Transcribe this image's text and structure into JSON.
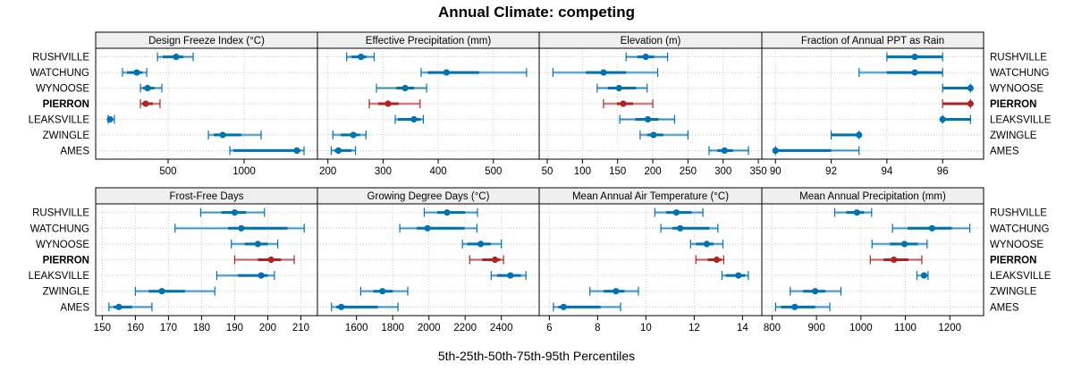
{
  "title": "Annual Climate: competing",
  "xlabel": "5th-25th-50th-75th-95th Percentiles",
  "colors": {
    "site": "#0072b2",
    "site_light": "#5aa3cf",
    "highlight": "#b22222",
    "highlight_light": "#d98080",
    "strip_bg": "#efefef",
    "grid": "#c8c8c8"
  },
  "chart_data": {
    "type": "dotplot-percentile",
    "title": "Annual Climate: competing",
    "xlabel": "5th-25th-50th-75th-95th Percentiles",
    "sites": [
      "RUSHVILLE",
      "WATCHUNG",
      "WYNOOSE",
      "PIERRON",
      "LEAKSVILLE",
      "ZWINGLE",
      "AMES"
    ],
    "highlight_site": "PIERRON",
    "percentiles": [
      "p5",
      "p25",
      "p50",
      "p75",
      "p95"
    ],
    "panels": [
      {
        "name": "Design Freeze Index (°C)",
        "xlim": [
          24,
          1482
        ],
        "ticks": [
          500,
          1000
        ],
        "values": {
          "RUSHVILLE": [
            430,
            465,
            553,
            600,
            665
          ],
          "WATCHUNG": [
            200,
            230,
            294,
            330,
            360
          ],
          "WYNOOSE": [
            318,
            335,
            365,
            410,
            459
          ],
          "PIERRON": [
            318,
            330,
            353,
            400,
            447
          ],
          "LEAKSVILLE": [
            106,
            110,
            118,
            130,
            147
          ],
          "ZWINGLE": [
            765,
            800,
            859,
            982,
            1112
          ],
          "AMES": [
            906,
            930,
            1347,
            1370,
            1394
          ]
        }
      },
      {
        "name": "Effective Precipitation (mm)",
        "xlim": [
          181,
          583
        ],
        "ticks": [
          200,
          300,
          400,
          500
        ],
        "values": {
          "RUSHVILLE": [
            234,
            243,
            260,
            270,
            284
          ],
          "WATCHUNG": [
            369,
            381,
            415,
            474,
            560
          ],
          "WYNOOSE": [
            288,
            324,
            340,
            356,
            379
          ],
          "PIERRON": [
            275,
            291,
            309,
            328,
            367
          ],
          "LEAKSVILLE": [
            322,
            327,
            356,
            368,
            373
          ],
          "ZWINGLE": [
            209,
            223,
            246,
            258,
            269
          ],
          "AMES": [
            206,
            212,
            219,
            243,
            250
          ]
        }
      },
      {
        "name": "Elevation (m)",
        "xlim": [
          38.5,
          355
        ],
        "ticks": [
          50,
          100,
          150,
          200,
          250,
          300,
          350
        ],
        "values": {
          "RUSHVILLE": [
            162,
            178,
            190,
            202,
            221
          ],
          "WATCHUNG": [
            58,
            105,
            130,
            162,
            207
          ],
          "WYNOOSE": [
            121,
            136,
            152,
            176,
            192
          ],
          "PIERRON": [
            130,
            149,
            158,
            172,
            200
          ],
          "LEAKSVILLE": [
            153,
            175,
            193,
            208,
            231
          ],
          "ZWINGLE": [
            182,
            192,
            201,
            215,
            250
          ],
          "AMES": [
            280,
            292,
            302,
            314,
            336
          ]
        }
      },
      {
        "name": "Fraction of Annual PPT as Rain",
        "xlim": [
          89.51,
          97.47
        ],
        "ticks": [
          90,
          92,
          94,
          96
        ],
        "values": {
          "RUSHVILLE": [
            94,
            94,
            95,
            96,
            96
          ],
          "WATCHUNG": [
            93,
            94,
            95,
            96,
            96
          ],
          "WYNOOSE": [
            96,
            96,
            97,
            97,
            97
          ],
          "PIERRON": [
            96,
            96,
            97,
            97,
            97
          ],
          "LEAKSVILLE": [
            96,
            96,
            96,
            97,
            97
          ],
          "ZWINGLE": [
            92,
            92,
            93,
            93,
            93
          ],
          "AMES": [
            90,
            90,
            90,
            92,
            93
          ]
        }
      },
      {
        "name": "Frost-Free Days",
        "xlim": [
          148,
          215
        ],
        "ticks": [
          150,
          160,
          170,
          180,
          190,
          200,
          210
        ],
        "values": {
          "RUSHVILLE": [
            179.7,
            186,
            190,
            193.4,
            199
          ],
          "WATCHUNG": [
            172,
            188,
            192,
            206,
            211
          ],
          "WYNOOSE": [
            189,
            193,
            197,
            200,
            203
          ],
          "PIERRON": [
            190,
            197,
            201,
            204,
            208
          ],
          "LEAKSVILLE": [
            184.6,
            191,
            198,
            200,
            202
          ],
          "ZWINGLE": [
            160,
            164,
            168,
            175,
            184
          ],
          "AMES": [
            152,
            153.4,
            155,
            159,
            165
          ]
        }
      },
      {
        "name": "Growing Degree Days (°C)",
        "xlim": [
          1384,
          2609
        ],
        "ticks": [
          1600,
          1800,
          2000,
          2200,
          2400
        ],
        "values": {
          "RUSHVILLE": [
            1974,
            2046,
            2100,
            2200,
            2268
          ],
          "WATCHUNG": [
            1839,
            1933,
            1992,
            2196,
            2265
          ],
          "WYNOOSE": [
            2185,
            2211,
            2286,
            2342,
            2400
          ],
          "PIERRON": [
            2225,
            2294,
            2365,
            2393,
            2412
          ],
          "LEAKSVILLE": [
            2344,
            2376,
            2450,
            2508,
            2536
          ],
          "ZWINGLE": [
            1623,
            1693,
            1743,
            1800,
            1883
          ],
          "AMES": [
            1462,
            1488,
            1516,
            1718,
            1829
          ]
        }
      },
      {
        "name": "Mean Annual Air Temperature (°C)",
        "xlim": [
          5.58,
          14.8
        ],
        "ticks": [
          6,
          8,
          10,
          12,
          14
        ],
        "values": {
          "RUSHVILLE": [
            10.37,
            10.84,
            11.26,
            11.89,
            12.36
          ],
          "WATCHUNG": [
            10.62,
            11.09,
            11.42,
            12.63,
            12.98
          ],
          "WYNOOSE": [
            11.85,
            12.07,
            12.52,
            12.81,
            13.19
          ],
          "PIERRON": [
            12.07,
            12.56,
            12.93,
            13.12,
            13.22
          ],
          "LEAKSVILLE": [
            13.15,
            13.31,
            13.83,
            14.11,
            14.24
          ],
          "ZWINGLE": [
            7.68,
            8.25,
            8.76,
            9.11,
            9.69
          ],
          "AMES": [
            6.17,
            6.37,
            6.59,
            8.12,
            8.95
          ]
        }
      },
      {
        "name": "Mean Annual Precipitation (mm)",
        "xlim": [
          777,
          1276
        ],
        "ticks": [
          800,
          900,
          1000,
          1100,
          1200
        ],
        "values": {
          "RUSHVILLE": [
            941,
            967,
            991,
            1007,
            1024
          ],
          "WATCHUNG": [
            1071,
            1105,
            1160,
            1205,
            1245
          ],
          "WYNOOSE": [
            1025,
            1065,
            1098,
            1128,
            1149
          ],
          "PIERRON": [
            1021,
            1051,
            1074,
            1107,
            1137
          ],
          "LEAKSVILLE": [
            1126,
            1135,
            1142,
            1148,
            1151
          ],
          "ZWINGLE": [
            841,
            870,
            897,
            920,
            955
          ],
          "AMES": [
            808,
            820,
            851,
            897,
            930
          ]
        }
      }
    ],
    "layout": {
      "rows": 2,
      "cols": 4,
      "left_labels_on": "left",
      "right_labels_on": "right"
    },
    "grid": true
  }
}
